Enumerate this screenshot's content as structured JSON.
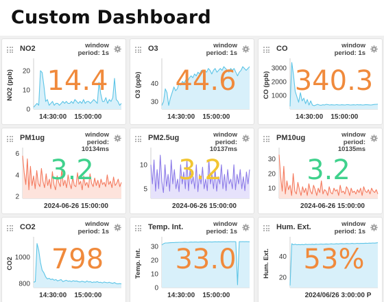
{
  "page": {
    "title": "Custom Dashboard"
  },
  "panels": [
    {
      "name": "NO2",
      "window": "window\nperiod: 1s",
      "value": "14.4",
      "value_color": "#f08a3c",
      "line_color": "#5bc4e6",
      "fill": "#d8f0fa",
      "chart_data": {
        "type": "line",
        "ylabel": "NO2 (ppb)",
        "yticks": [
          "0",
          "10",
          "20"
        ],
        "xticks": [
          "14:30:00",
          "15:00:00"
        ],
        "ylim": [
          0,
          25
        ],
        "values": [
          1,
          2,
          3,
          2,
          20,
          19,
          12,
          4,
          5,
          2,
          3,
          4,
          2,
          3,
          3,
          2,
          3,
          4,
          3,
          4,
          3,
          3,
          4,
          3,
          5,
          4,
          3,
          4,
          3,
          5,
          3,
          4,
          4,
          3,
          4,
          5,
          4,
          3,
          14,
          8,
          4,
          4,
          6,
          3,
          5,
          4,
          6,
          16,
          5,
          4,
          2,
          3
        ]
      }
    },
    {
      "name": "O3",
      "window": "window\nperiod: 1s",
      "value": "44.6",
      "value_color": "#f08a3c",
      "line_color": "#5bc4e6",
      "fill": "#d8f0fa",
      "chart_data": {
        "type": "line",
        "ylabel": "O3 (ppb)",
        "yticks": [
          "30",
          "40"
        ],
        "xticks": [
          "14:30:00",
          "15:00:00"
        ],
        "ylim": [
          26,
          52
        ],
        "values": [
          28,
          30,
          37,
          35,
          28,
          32,
          35,
          38,
          36,
          37,
          40,
          39,
          41,
          40,
          42,
          41,
          43,
          44,
          43,
          45,
          44,
          46,
          45,
          47,
          46,
          47,
          46,
          48,
          47,
          45,
          47,
          48,
          46,
          47,
          48,
          47,
          49,
          48,
          47,
          46,
          48,
          47,
          48,
          46,
          44,
          46,
          47,
          49,
          48,
          47,
          48,
          49
        ]
      }
    },
    {
      "name": "CO",
      "window": "window\nperiod: 1s",
      "value": "340.3",
      "value_color": "#f08a3c",
      "line_color": "#5bc4e6",
      "fill": "#d8f0fa",
      "chart_data": {
        "type": "line",
        "ylabel": "CO (ppb)",
        "yticks": [
          "1000",
          "2000",
          "3000"
        ],
        "xticks": [
          "14:30:00",
          "15:00:00"
        ],
        "ylim": [
          0,
          3500
        ],
        "values": [
          200,
          3400,
          2500,
          1300,
          900,
          500,
          1200,
          600,
          800,
          400,
          700,
          300,
          600,
          300,
          250,
          300,
          350,
          300,
          280,
          320,
          300,
          350,
          330,
          300,
          320,
          310,
          300,
          330,
          310,
          300,
          320,
          310,
          300,
          330,
          320,
          300,
          310,
          320,
          300,
          330,
          310,
          320,
          300,
          310,
          330,
          320,
          310,
          300,
          320,
          340,
          350,
          360
        ]
      }
    },
    {
      "name": "PM1ug",
      "window": "window\nperiod:\n10134ms",
      "value": "3.2",
      "value_color": "#3fd18c",
      "line_color": "#f47a5e",
      "fill": "#fde3dc",
      "chart_data": {
        "type": "line",
        "ylabel": "",
        "yticks": [
          "2",
          "4",
          "6"
        ],
        "xticks": [
          "2024-06-26 15:00:00"
        ],
        "ylim": [
          1.8,
          6.3
        ],
        "values": [
          5.8,
          4.2,
          3.1,
          5.5,
          2.6,
          4.8,
          3.0,
          3.9,
          2.7,
          4.4,
          3.2,
          2.9,
          4.6,
          3.4,
          2.8,
          4.1,
          3.0,
          3.6,
          2.7,
          4.3,
          3.1,
          2.6,
          3.9,
          3.3,
          2.9,
          4.5,
          3.0,
          3.5,
          2.8,
          4.0,
          3.2,
          2.7,
          3.8,
          3.0,
          2.9,
          4.2,
          3.1,
          3.4,
          2.6,
          3.9,
          3.0,
          3.3,
          2.8,
          4.1,
          3.2,
          2.9,
          3.7,
          3.0,
          3.5,
          2.8,
          3.6,
          3.1,
          3.3,
          2.9,
          4.0,
          3.1,
          3.4,
          2.8,
          3.8,
          3.0,
          3.2,
          3.6,
          2.9,
          3.3
        ]
      }
    },
    {
      "name": "PM2.5ug",
      "window": "window\nperiod:\n10137ms",
      "value": "3.2",
      "value_color": "#f2c531",
      "line_color": "#8c7be8",
      "fill": "#e6e2fb",
      "chart_data": {
        "type": "line",
        "ylabel": "",
        "yticks": [
          "5",
          "10"
        ],
        "xticks": [
          "2024-06-26 15:00:00"
        ],
        "ylim": [
          3,
          13
        ],
        "values": [
          10,
          6,
          11,
          4.5,
          9,
          5,
          12,
          6.5,
          4.2,
          10,
          5.5,
          8,
          4.5,
          11,
          6,
          9,
          5,
          7,
          4.4,
          10,
          6,
          8.5,
          5,
          11,
          4.6,
          9,
          6,
          7.5,
          5,
          10,
          4.4,
          8,
          6,
          9.5,
          5,
          7,
          4.6,
          11,
          6,
          8,
          5,
          9,
          4.5,
          7.5,
          6,
          10,
          5,
          8,
          4.6,
          9,
          6,
          7,
          5,
          10,
          4.8,
          8,
          6,
          9,
          5,
          7.5,
          4.6,
          8.5,
          6,
          9
        ]
      }
    },
    {
      "name": "PM10ug",
      "window": "window\nperiod:\n10135ms",
      "value": "3.2",
      "value_color": "#3fd18c",
      "line_color": "#f47a5e",
      "fill": "#fde3dc",
      "chart_data": {
        "type": "line",
        "ylabel": "",
        "yticks": [
          "10",
          "20",
          "30"
        ],
        "xticks": [
          "2024-06-26 15:00:00"
        ],
        "ylim": [
          3,
          36
        ],
        "values": [
          33,
          18,
          8,
          25,
          6,
          15,
          9,
          12,
          5,
          20,
          8,
          6,
          14,
          9,
          5,
          11,
          7,
          10,
          5,
          13,
          8,
          6,
          12,
          9,
          5,
          10,
          7,
          15,
          6,
          9,
          8,
          5,
          11,
          7,
          6,
          10,
          8,
          9,
          5,
          12,
          7,
          8,
          6,
          11,
          9,
          5,
          10,
          7,
          8,
          6,
          9,
          7,
          10,
          5,
          11,
          8,
          7,
          9,
          6,
          10,
          8,
          7,
          9,
          6
        ]
      }
    },
    {
      "name": "CO2",
      "window": "window\nperiod: 1s",
      "value": "798",
      "value_color": "#f08a3c",
      "line_color": "#5bc4e6",
      "fill": "#d8f0fa",
      "chart_data": {
        "type": "line",
        "ylabel": "CO2",
        "yticks": [
          "800",
          "1000"
        ],
        "xticks": [
          "14:30:00",
          "15:00:00"
        ],
        "ylim": [
          770,
          1130
        ],
        "values": [
          810,
          815,
          1100,
          1050,
          960,
          900,
          880,
          850,
          835,
          840,
          830,
          835,
          825,
          830,
          820,
          825,
          830,
          815,
          820,
          825,
          818,
          820,
          815,
          822,
          818,
          820,
          815,
          812,
          818,
          815,
          810,
          820,
          812,
          815,
          808,
          812,
          810,
          815,
          808,
          810,
          805,
          812,
          808,
          806,
          810,
          805,
          802,
          808,
          800,
          798,
          800,
          798
        ]
      }
    },
    {
      "name": "Temp. Int.",
      "window": "window\nperiod: 1s",
      "value": "33.0",
      "value_color": "#f08a3c",
      "line_color": "#5bc4e6",
      "fill": "#d8f0fa",
      "chart_data": {
        "type": "line",
        "ylabel": "Temp. Int.",
        "yticks": [
          "0",
          "10",
          "20",
          "30"
        ],
        "xticks": [
          "14:30:00",
          "15:00:00"
        ],
        "ylim": [
          0,
          35
        ],
        "values": [
          31,
          32,
          32.5,
          32.5,
          32.6,
          32.7,
          32.8,
          32.8,
          32.9,
          32.9,
          33,
          33,
          33,
          33.1,
          33.1,
          33,
          33.1,
          33.2,
          33.1,
          33.2,
          33.2,
          33.1,
          33.2,
          33.3,
          33.2,
          33.3,
          33.2,
          33.3,
          33.3,
          33.2,
          33.3,
          33.4,
          33.3,
          33.4,
          33.3,
          33.4,
          33.4,
          33.3,
          33.4,
          33.4,
          33.5,
          33.4,
          33.5,
          33.4,
          2,
          33.5,
          33.4,
          33.5,
          33.4,
          33.5,
          33.4,
          33.4
        ]
      }
    },
    {
      "name": "Hum. Ext.",
      "window": "window\nperiod: 1s",
      "value": "53%",
      "value_color": "#f08a3c",
      "line_color": "#5bc4e6",
      "fill": "#d8f0fa",
      "chart_data": {
        "type": "line",
        "ylabel": "Hum. Ext.",
        "yticks": [
          "20",
          "40"
        ],
        "xticks": [
          "2024/06/26 3:00:00 P"
        ],
        "ylim": [
          10,
          56
        ],
        "values": [
          12,
          52,
          51,
          51.5,
          51,
          51.2,
          51,
          51.3,
          51,
          51.5,
          51.2,
          51.4,
          51.3,
          51.5,
          51.2,
          51.6,
          51.4,
          51.5,
          51.7,
          51.5,
          51.6,
          51.8,
          51.6,
          51.7,
          51.9,
          51.7,
          51.8,
          52,
          51.8,
          52,
          52.1,
          51.9,
          52,
          52.2,
          52,
          52.1,
          52.3,
          52.1,
          52.2,
          52.4,
          52.2,
          52.3,
          52.4,
          52.3,
          52.5,
          52.4,
          52.6,
          52.5,
          52.7,
          52.6,
          52.8,
          53
        ]
      }
    }
  ]
}
